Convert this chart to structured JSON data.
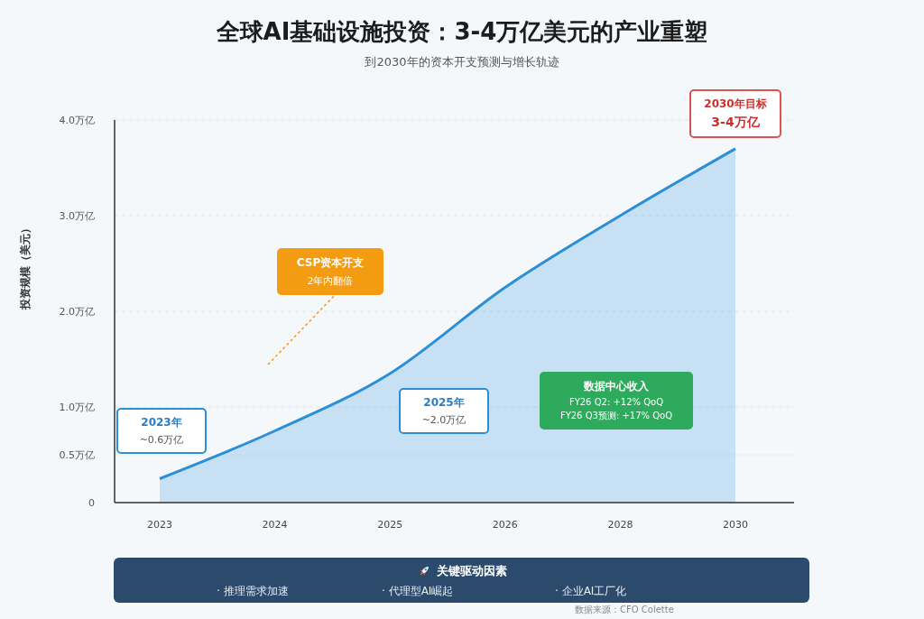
{
  "chart_data": {
    "type": "area",
    "title": "全球AI基础设施投资：3-4万亿美元的产业重塑",
    "subtitle": "到2030年的资本开支预测与增长轨迹",
    "ylabel": "投资规模（美元）",
    "categories": [
      "2023",
      "2024",
      "2025",
      "2026",
      "2028",
      "2030"
    ],
    "values": [
      0.25,
      0.75,
      1.35,
      2.25,
      3,
      3.7
    ],
    "color": "#2b8fd6",
    "ylim": [
      0,
      4
    ],
    "yticks": [
      0,
      {
        "value": 0.5,
        "label": "0.5万亿"
      },
      {
        "value": 1,
        "label": "1.0万亿"
      },
      {
        "value": 2,
        "label": "2.0万亿"
      },
      {
        "value": 3,
        "label": "3.0万亿"
      },
      {
        "value": 4,
        "label": "4.0万亿"
      }
    ],
    "grid": "y",
    "annotations": [
      "2023年\n~0.6万亿",
      "2025年\n~2.0万亿",
      {
        "text": "2030年目标\n3-4万亿",
        "x": "2030",
        "y": 3.7
      },
      "CSP资本开支\n2年内翻倍",
      "数据中心收入\nFY26 Q2: +12% QoQ\nFY26 Q3预测: +17% QoQ",
      "关键驱动因素",
      "· 推理需求加速",
      "· 代理型AI崛起",
      "· 企业AI工厂化",
      "数据来源：CFO Colette"
    ]
  }
}
